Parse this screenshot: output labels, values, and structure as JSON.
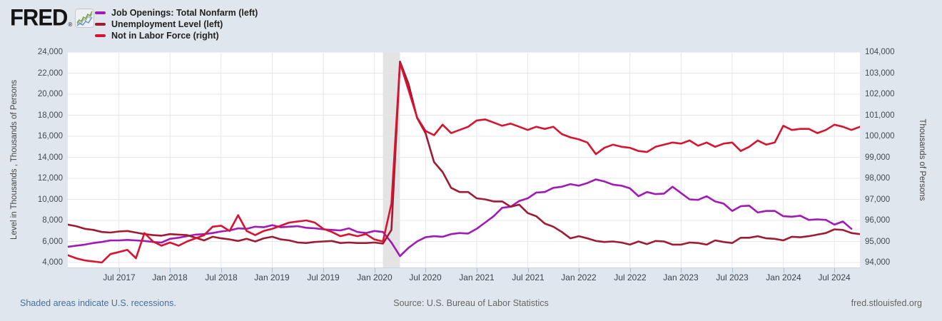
{
  "header": {
    "logo_text": "FRED",
    "logo_reg": "®"
  },
  "footer": {
    "recession_note": "Shaded areas indicate U.S. recessions.",
    "source": "Source: U.S. Bureau of Labor Statistics",
    "site": "fred.stlouisfed.org"
  },
  "chart_data": {
    "type": "line",
    "background_color": "#dfe6ee",
    "plot_background": "#ffffff",
    "gridline_color": "#e7e7e7",
    "grid": "on",
    "legend_position": "top-left",
    "x_axis": {
      "start": "Jan 2017",
      "end": "Oct 2024",
      "total_months": 93,
      "tick_months": [
        6,
        12,
        18,
        24,
        30,
        36,
        42,
        48,
        54,
        60,
        66,
        72,
        78,
        84,
        90
      ],
      "tick_labels": [
        "Jul 2017",
        "Jan 2018",
        "Jul 2018",
        "Jan 2019",
        "Jul 2019",
        "Jan 2020",
        "Jul 2020",
        "Jan 2021",
        "Jul 2021",
        "Jan 2022",
        "Jul 2022",
        "Jan 2023",
        "Jul 2023",
        "Jan 2024",
        "Jul 2024"
      ]
    },
    "left_axis": {
      "title": "Level in Thousands , Thousands of Persons",
      "min": 4000,
      "max": 24000,
      "values": [
        24000,
        22000,
        20000,
        18000,
        16000,
        14000,
        12000,
        10000,
        8000,
        6000,
        4000
      ],
      "labels": [
        "24,000",
        "22,000",
        "20,000",
        "18,000",
        "16,000",
        "14,000",
        "12,000",
        "10,000",
        "8,000",
        "6,000",
        "4,000"
      ]
    },
    "right_axis": {
      "title": "Thousands of Persons",
      "min": 94000,
      "max": 104000,
      "values": [
        104000,
        103000,
        102000,
        101000,
        100000,
        99000,
        98000,
        97000,
        96000,
        95000,
        94000
      ],
      "labels": [
        "104,000",
        "103,000",
        "102,000",
        "101,000",
        "100,000",
        "99,000",
        "98,000",
        "97,000",
        "96,000",
        "95,000",
        "94,000"
      ]
    },
    "recession": {
      "start_month_index": 37,
      "end_month_index": 39,
      "start": "Feb 2020",
      "end": "Apr 2020",
      "color": "#e3e3e3"
    },
    "series": [
      {
        "id": "job-openings",
        "name": "Job Openings: Total Nonfarm (left)",
        "axis": "left",
        "color": "#a21ab5",
        "start": "Jan 2017",
        "frequency": "monthly",
        "values": [
          5500,
          5600,
          5700,
          5850,
          5950,
          6100,
          6100,
          6150,
          6100,
          6050,
          5950,
          5900,
          6250,
          6350,
          6500,
          6650,
          6700,
          6800,
          6950,
          7050,
          7250,
          7200,
          7400,
          7350,
          7550,
          7350,
          7400,
          7450,
          7300,
          7250,
          7150,
          7100,
          7050,
          7250,
          6900,
          6800,
          7000,
          6900,
          5900,
          4600,
          5400,
          6000,
          6400,
          6500,
          6450,
          6700,
          6800,
          6750,
          7200,
          7800,
          8400,
          9200,
          9300,
          9850,
          10100,
          10650,
          10700,
          11100,
          11200,
          11450,
          11300,
          11550,
          11900,
          11700,
          11400,
          11300,
          11050,
          10300,
          10700,
          10500,
          10550,
          11200,
          10600,
          10000,
          9950,
          10300,
          9800,
          9600,
          8900,
          9350,
          9400,
          8750,
          8900,
          8900,
          8400,
          8350,
          8450,
          8050,
          8100,
          8050,
          7600,
          7900,
          7200
        ]
      },
      {
        "id": "unemployment",
        "name": "Unemployment Level (left)",
        "axis": "left",
        "color": "#9e1b32",
        "start": "Jan 2017",
        "frequency": "monthly",
        "values": [
          7600,
          7450,
          7200,
          7100,
          6900,
          6850,
          6950,
          7000,
          6850,
          6700,
          6600,
          6550,
          6700,
          6650,
          6600,
          6350,
          6100,
          6450,
          6300,
          6200,
          6050,
          6250,
          6000,
          6300,
          6450,
          6200,
          6100,
          5900,
          5850,
          5950,
          6000,
          6050,
          5850,
          5900,
          5850,
          5850,
          5900,
          5800,
          7100,
          23100,
          21000,
          17750,
          16300,
          13550,
          12600,
          11100,
          10700,
          10700,
          10100,
          10000,
          9800,
          9800,
          9300,
          9500,
          8700,
          8400,
          7700,
          7400,
          6900,
          6300,
          6500,
          6300,
          6050,
          5950,
          6000,
          5900,
          5700,
          6000,
          5750,
          6050,
          6000,
          5700,
          5700,
          5900,
          5850,
          5700,
          6100,
          5950,
          5850,
          6350,
          6350,
          6500,
          6300,
          6250,
          6100,
          6450,
          6400,
          6500,
          6650,
          6800,
          7150,
          7100,
          6800,
          6700
        ]
      },
      {
        "id": "not-in-labor-force",
        "name": "Not in Labor Force (right)",
        "axis": "right",
        "color": "#d8132f",
        "start": "Jan 2017",
        "frequency": "monthly",
        "values": [
          94350,
          94200,
          94100,
          94050,
          94000,
          94400,
          94500,
          94600,
          94200,
          95400,
          95000,
          94800,
          94950,
          94800,
          95000,
          95150,
          95300,
          95700,
          95750,
          95500,
          96250,
          95500,
          95300,
          95500,
          95600,
          95750,
          95900,
          95950,
          96000,
          95900,
          95600,
          95450,
          95250,
          95350,
          95250,
          95350,
          95100,
          95000,
          96800,
          103500,
          102200,
          100900,
          100250,
          100050,
          100550,
          100150,
          100300,
          100450,
          100750,
          100800,
          100650,
          100500,
          100600,
          100450,
          100300,
          100450,
          100350,
          100450,
          100100,
          99950,
          99850,
          99700,
          99150,
          99450,
          99600,
          99500,
          99450,
          99300,
          99250,
          99500,
          99600,
          99700,
          99650,
          99800,
          99550,
          99700,
          99500,
          99650,
          99700,
          99300,
          99500,
          99800,
          99600,
          99700,
          100500,
          100300,
          100350,
          100350,
          100150,
          100300,
          100550,
          100450,
          100300,
          100450
        ]
      }
    ]
  }
}
